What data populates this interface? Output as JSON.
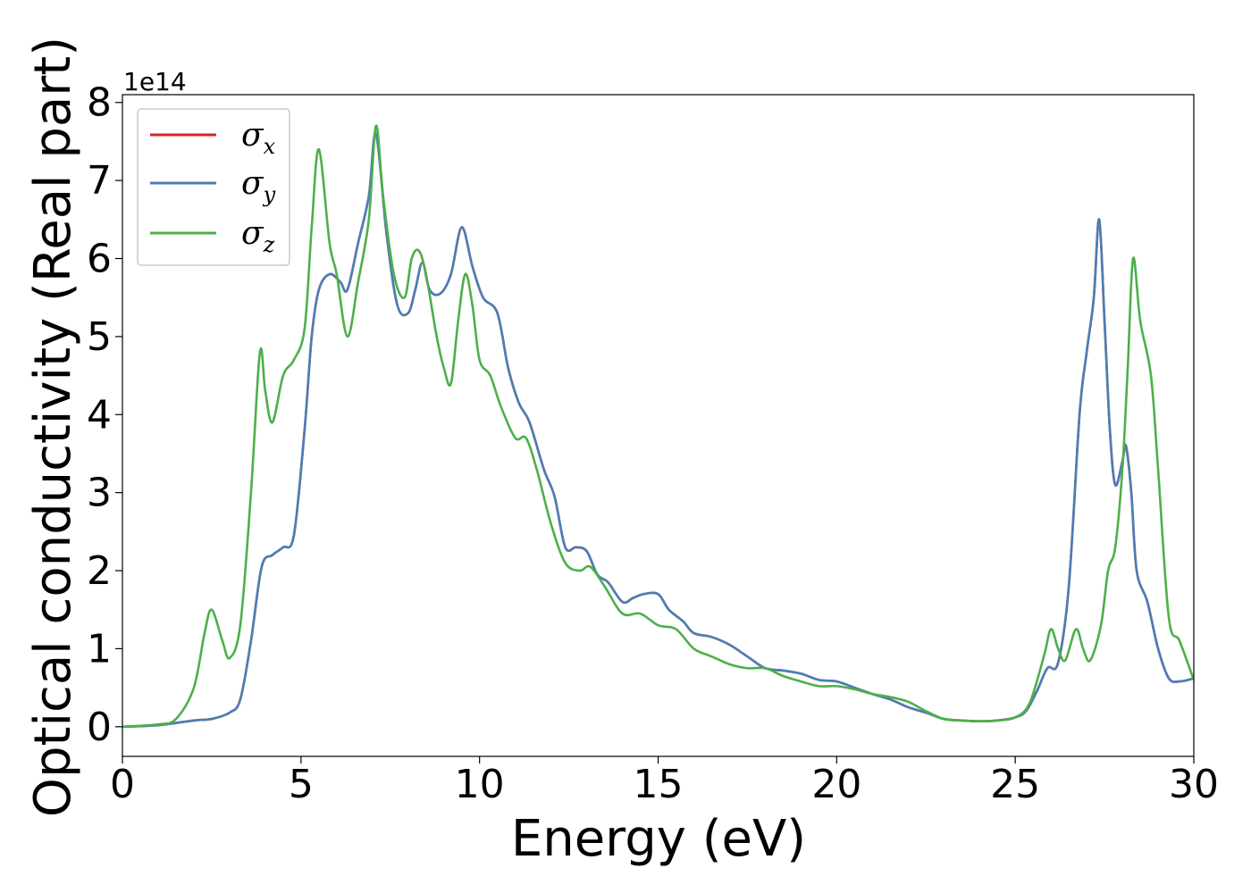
{
  "chart_data": {
    "type": "line",
    "title": "",
    "xlabel": "Energy (eV)",
    "ylabel": "Optical conductivity (Real part)",
    "y_offset_label": "1e14",
    "xlim": [
      0,
      30
    ],
    "ylim": [
      -0.38,
      8.1
    ],
    "xticks": [
      0,
      5,
      10,
      15,
      20,
      25,
      30
    ],
    "yticks": [
      0,
      1,
      2,
      3,
      4,
      5,
      6,
      7,
      8
    ],
    "grid": false,
    "legend_position": "top-left",
    "series": [
      {
        "name": "σx",
        "legend_symbol": "σ",
        "legend_sub": "x",
        "color": "#d62728",
        "x": [
          0,
          1,
          2,
          2.5,
          3,
          3.3,
          3.6,
          3.9,
          4.2,
          4.5,
          4.8,
          5.1,
          5.3,
          5.5,
          5.8,
          6.1,
          6.3,
          6.6,
          6.9,
          7.1,
          7.4,
          7.7,
          8.0,
          8.2,
          8.4,
          8.6,
          8.9,
          9.2,
          9.5,
          9.8,
          10.1,
          10.5,
          10.8,
          11.1,
          11.4,
          11.8,
          12.1,
          12.4,
          12.7,
          13.0,
          13.3,
          13.6,
          14.0,
          14.3,
          14.6,
          15.0,
          15.3,
          15.7,
          16.0,
          16.5,
          17.0,
          17.5,
          18.0,
          18.5,
          19.0,
          19.5,
          20.0,
          20.5,
          21.0,
          21.5,
          22.0,
          22.5,
          23.0,
          23.5,
          24.0,
          24.5,
          25.0,
          25.3,
          25.6,
          25.9,
          26.2,
          26.5,
          26.8,
          27.0,
          27.2,
          27.35,
          27.5,
          27.65,
          27.8,
          28.0,
          28.1,
          28.25,
          28.4,
          28.7,
          29.0,
          29.3,
          29.6,
          30.0
        ],
        "values": [
          0,
          0.02,
          0.08,
          0.1,
          0.18,
          0.35,
          1.1,
          2.05,
          2.2,
          2.3,
          2.45,
          3.8,
          5.0,
          5.6,
          5.8,
          5.7,
          5.6,
          6.2,
          6.8,
          7.6,
          6.3,
          5.4,
          5.3,
          5.6,
          5.95,
          5.6,
          5.55,
          5.8,
          6.4,
          5.9,
          5.5,
          5.3,
          4.6,
          4.15,
          3.9,
          3.3,
          2.95,
          2.3,
          2.3,
          2.25,
          1.95,
          1.85,
          1.6,
          1.65,
          1.7,
          1.7,
          1.5,
          1.35,
          1.2,
          1.15,
          1.05,
          0.9,
          0.75,
          0.72,
          0.68,
          0.6,
          0.58,
          0.5,
          0.42,
          0.35,
          0.25,
          0.18,
          0.1,
          0.08,
          0.07,
          0.08,
          0.12,
          0.2,
          0.45,
          0.75,
          0.82,
          1.8,
          4.0,
          4.8,
          5.5,
          6.5,
          5.2,
          3.8,
          3.1,
          3.4,
          3.6,
          3.0,
          2.0,
          1.6,
          1.0,
          0.62,
          0.58,
          0.62
        ]
      },
      {
        "name": "σy",
        "legend_symbol": "σ",
        "legend_sub": "y",
        "color": "#4a7eb6",
        "x": [
          0,
          1,
          2,
          2.5,
          3,
          3.3,
          3.6,
          3.9,
          4.2,
          4.5,
          4.8,
          5.1,
          5.3,
          5.5,
          5.8,
          6.1,
          6.3,
          6.6,
          6.9,
          7.1,
          7.4,
          7.7,
          8.0,
          8.2,
          8.4,
          8.6,
          8.9,
          9.2,
          9.5,
          9.8,
          10.1,
          10.5,
          10.8,
          11.1,
          11.4,
          11.8,
          12.1,
          12.4,
          12.7,
          13.0,
          13.3,
          13.6,
          14.0,
          14.3,
          14.6,
          15.0,
          15.3,
          15.7,
          16.0,
          16.5,
          17.0,
          17.5,
          18.0,
          18.5,
          19.0,
          19.5,
          20.0,
          20.5,
          21.0,
          21.5,
          22.0,
          22.5,
          23.0,
          23.5,
          24.0,
          24.5,
          25.0,
          25.3,
          25.6,
          25.9,
          26.2,
          26.5,
          26.8,
          27.0,
          27.2,
          27.35,
          27.5,
          27.65,
          27.8,
          28.0,
          28.1,
          28.25,
          28.4,
          28.7,
          29.0,
          29.3,
          29.6,
          30.0
        ],
        "values": [
          0,
          0.02,
          0.08,
          0.1,
          0.18,
          0.35,
          1.1,
          2.05,
          2.2,
          2.3,
          2.45,
          3.8,
          5.0,
          5.6,
          5.8,
          5.7,
          5.6,
          6.2,
          6.8,
          7.6,
          6.3,
          5.4,
          5.3,
          5.6,
          5.95,
          5.6,
          5.55,
          5.8,
          6.4,
          5.9,
          5.5,
          5.3,
          4.6,
          4.15,
          3.9,
          3.3,
          2.95,
          2.3,
          2.3,
          2.25,
          1.95,
          1.85,
          1.6,
          1.65,
          1.7,
          1.7,
          1.5,
          1.35,
          1.2,
          1.15,
          1.05,
          0.9,
          0.75,
          0.72,
          0.68,
          0.6,
          0.58,
          0.5,
          0.42,
          0.35,
          0.25,
          0.18,
          0.1,
          0.08,
          0.07,
          0.08,
          0.12,
          0.2,
          0.45,
          0.75,
          0.82,
          1.8,
          4.0,
          4.8,
          5.5,
          6.5,
          5.2,
          3.8,
          3.1,
          3.4,
          3.6,
          3.0,
          2.0,
          1.6,
          1.0,
          0.62,
          0.58,
          0.62
        ]
      },
      {
        "name": "σz",
        "legend_symbol": "σ",
        "legend_sub": "z",
        "color": "#4daf4a",
        "x": [
          0,
          1,
          1.5,
          2.0,
          2.3,
          2.5,
          2.8,
          3.0,
          3.3,
          3.6,
          3.85,
          4.0,
          4.2,
          4.5,
          4.8,
          5.1,
          5.3,
          5.5,
          5.8,
          6.0,
          6.3,
          6.6,
          6.9,
          7.1,
          7.3,
          7.6,
          7.9,
          8.1,
          8.3,
          8.5,
          8.8,
          9.0,
          9.2,
          9.4,
          9.6,
          9.8,
          10.0,
          10.3,
          10.6,
          11.0,
          11.3,
          11.6,
          12.0,
          12.4,
          12.8,
          13.1,
          13.5,
          14.0,
          14.5,
          15.0,
          15.5,
          16.0,
          16.5,
          17.0,
          17.5,
          18.0,
          18.5,
          19.0,
          19.5,
          20.0,
          20.5,
          21.0,
          21.5,
          22.0,
          22.5,
          23.0,
          23.5,
          24.0,
          24.5,
          25.0,
          25.4,
          25.8,
          26.0,
          26.2,
          26.4,
          26.7,
          26.9,
          27.1,
          27.4,
          27.6,
          27.8,
          28.0,
          28.15,
          28.3,
          28.5,
          28.8,
          29.0,
          29.3,
          29.6,
          30.0
        ],
        "values": [
          0,
          0.03,
          0.1,
          0.5,
          1.2,
          1.5,
          1.1,
          0.88,
          1.3,
          3.0,
          4.8,
          4.3,
          3.9,
          4.5,
          4.7,
          5.1,
          6.4,
          7.4,
          6.2,
          5.8,
          5.0,
          5.7,
          6.5,
          7.7,
          6.8,
          5.8,
          5.5,
          6.0,
          6.1,
          5.8,
          5.0,
          4.6,
          4.4,
          5.2,
          5.8,
          5.4,
          4.7,
          4.5,
          4.1,
          3.7,
          3.7,
          3.3,
          2.6,
          2.1,
          2.0,
          2.05,
          1.8,
          1.45,
          1.45,
          1.3,
          1.25,
          1.0,
          0.9,
          0.8,
          0.75,
          0.75,
          0.65,
          0.58,
          0.52,
          0.52,
          0.48,
          0.42,
          0.38,
          0.32,
          0.2,
          0.1,
          0.08,
          0.07,
          0.08,
          0.12,
          0.3,
          0.9,
          1.25,
          1.0,
          0.85,
          1.25,
          1.0,
          0.85,
          1.3,
          2.0,
          2.3,
          3.3,
          4.6,
          6.0,
          5.2,
          4.5,
          3.3,
          1.4,
          1.1,
          0.6
        ]
      }
    ]
  }
}
